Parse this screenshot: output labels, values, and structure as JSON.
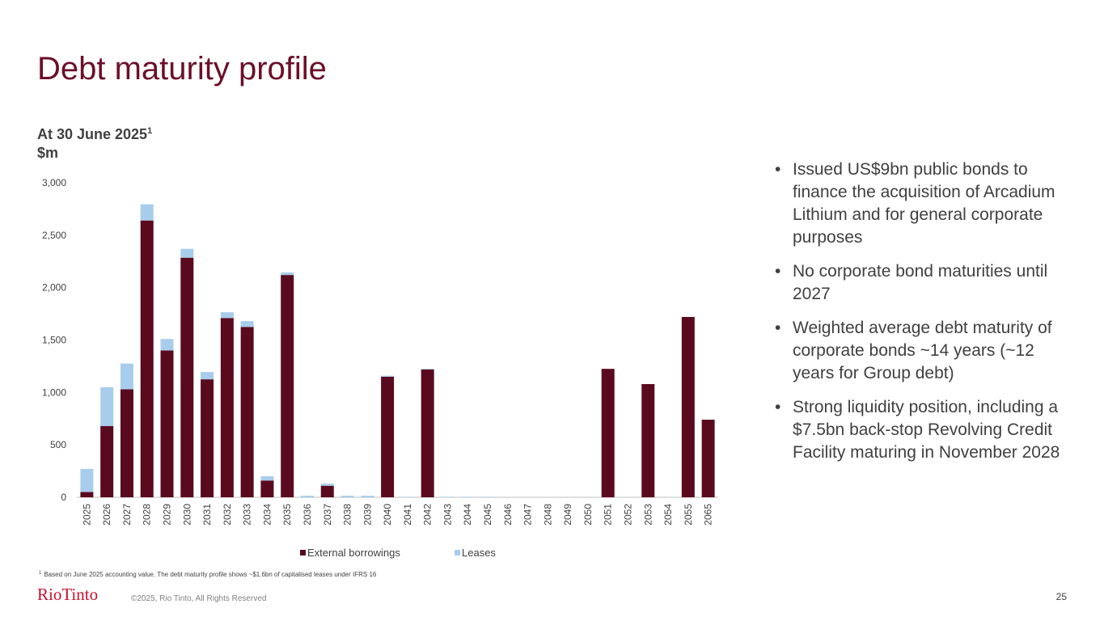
{
  "title": "Debt maturity profile",
  "bullets": [
    "Issued US$9bn public bonds to finance the acquisition of Arcadium Lithium and for general corporate purposes",
    "No corporate bond maturities until 2027",
    "Weighted average debt maturity of corporate bonds ~14 years (~12 years for Group debt)",
    "Strong liquidity position, including a $7.5bn back-stop Revolving Credit Facility maturing in November 2028"
  ],
  "footnote_marker": "1",
  "footnote": "Based on June 2025 accounting value. The debt maturity profile shows ~$1.6bn of capitalised leases under IFRS 16",
  "logo": "RioTinto",
  "copyright": "©2025, Rio Tinto, All Rights Reserved",
  "page_number": "25",
  "chart_data": {
    "type": "stacked_bar",
    "subtitle": "At 30 June 2025",
    "subtitle_superscript": "1",
    "y_label": "$m",
    "categories": [
      "2025",
      "2026",
      "2027",
      "2028",
      "2029",
      "2030",
      "2031",
      "2032",
      "2033",
      "2034",
      "2035",
      "2036",
      "2037",
      "2038",
      "2039",
      "2040",
      "2041",
      "2042",
      "2043",
      "2044",
      "2045",
      "2046",
      "2047",
      "2048",
      "2049",
      "2050",
      "2051",
      "2052",
      "2053",
      "2054",
      "2055",
      "2065"
    ],
    "series": [
      {
        "name": "External borrowings",
        "color": "#5a0a1e",
        "values": [
          50,
          680,
          1030,
          2640,
          1400,
          2285,
          1125,
          1710,
          1625,
          160,
          2120,
          0,
          110,
          0,
          0,
          1150,
          0,
          1220,
          0,
          0,
          0,
          0,
          0,
          0,
          0,
          0,
          1225,
          0,
          1080,
          0,
          1720,
          740
        ]
      },
      {
        "name": "Leases",
        "color": "#a8cdec",
        "values": [
          220,
          370,
          245,
          155,
          110,
          85,
          70,
          55,
          55,
          40,
          25,
          15,
          20,
          15,
          15,
          10,
          5,
          5,
          5,
          5,
          5,
          0,
          0,
          0,
          0,
          0,
          0,
          0,
          0,
          0,
          0,
          0
        ]
      }
    ],
    "ylim": [
      0,
      3000
    ],
    "yticks": [
      0,
      500,
      {
        "value": 1000,
        "label": "1,000"
      },
      {
        "value": 1500,
        "label": "1,500"
      },
      {
        "value": 2000,
        "label": "2,000"
      },
      {
        "value": 2500,
        "label": "2,500"
      },
      {
        "value": 3000,
        "label": "3,000"
      }
    ],
    "grid": false,
    "legend": "bottom"
  }
}
